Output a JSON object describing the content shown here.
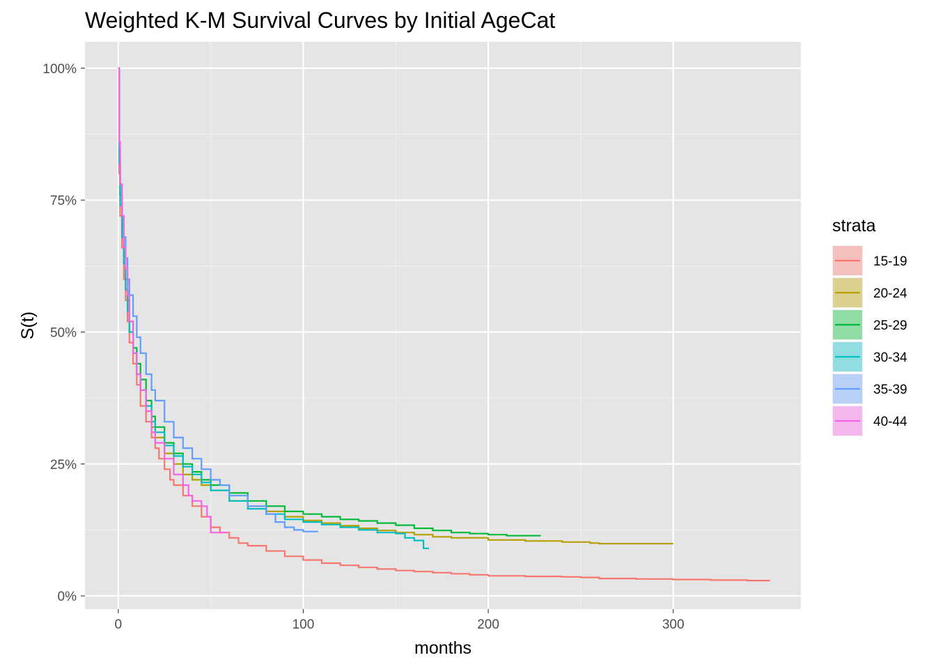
{
  "chart_data": {
    "type": "line",
    "step": true,
    "title": "Weighted K-M Survival Curves by Initial AgeCat",
    "xlabel": "months",
    "ylabel": "S(t)",
    "xlim": [
      -18,
      369
    ],
    "ylim": [
      -0.025,
      1.05
    ],
    "x_ticks": [
      0,
      100,
      200,
      300
    ],
    "x_tick_labels": [
      "0",
      "100",
      "200",
      "300"
    ],
    "y_ticks": [
      0,
      0.25,
      0.5,
      0.75,
      1.0
    ],
    "y_tick_labels": [
      "0%",
      "25%",
      "50%",
      "75%",
      "100%"
    ],
    "grid": true,
    "background": "#e5e5e5",
    "legend": {
      "title": "strata",
      "position": "right"
    },
    "series": [
      {
        "name": "15-19",
        "color": "#F8766D",
        "points": [
          [
            0,
            1.0
          ],
          [
            0.5,
            0.8
          ],
          [
            1,
            0.72
          ],
          [
            2,
            0.66
          ],
          [
            3,
            0.6
          ],
          [
            4,
            0.56
          ],
          [
            5,
            0.52
          ],
          [
            6,
            0.48
          ],
          [
            8,
            0.44
          ],
          [
            10,
            0.4
          ],
          [
            12,
            0.36
          ],
          [
            15,
            0.33
          ],
          [
            18,
            0.3
          ],
          [
            20,
            0.28
          ],
          [
            22,
            0.26
          ],
          [
            25,
            0.24
          ],
          [
            28,
            0.22
          ],
          [
            30,
            0.21
          ],
          [
            35,
            0.19
          ],
          [
            40,
            0.17
          ],
          [
            45,
            0.15
          ],
          [
            50,
            0.13
          ],
          [
            55,
            0.12
          ],
          [
            60,
            0.11
          ],
          [
            65,
            0.1
          ],
          [
            70,
            0.095
          ],
          [
            80,
            0.085
          ],
          [
            90,
            0.075
          ],
          [
            100,
            0.068
          ],
          [
            110,
            0.062
          ],
          [
            120,
            0.058
          ],
          [
            130,
            0.054
          ],
          [
            140,
            0.051
          ],
          [
            150,
            0.048
          ],
          [
            160,
            0.046
          ],
          [
            170,
            0.044
          ],
          [
            180,
            0.042
          ],
          [
            190,
            0.04
          ],
          [
            200,
            0.038
          ],
          [
            220,
            0.037
          ],
          [
            240,
            0.036
          ],
          [
            250,
            0.035
          ],
          [
            260,
            0.033
          ],
          [
            280,
            0.032
          ],
          [
            300,
            0.031
          ],
          [
            320,
            0.03
          ],
          [
            340,
            0.029
          ],
          [
            352,
            0.028
          ]
        ]
      },
      {
        "name": "20-24",
        "color": "#B79F00",
        "points": [
          [
            0,
            1.0
          ],
          [
            0.5,
            0.82
          ],
          [
            1,
            0.75
          ],
          [
            2,
            0.68
          ],
          [
            3,
            0.63
          ],
          [
            4,
            0.58
          ],
          [
            5,
            0.54
          ],
          [
            6,
            0.5
          ],
          [
            8,
            0.46
          ],
          [
            10,
            0.42
          ],
          [
            12,
            0.39
          ],
          [
            15,
            0.35
          ],
          [
            18,
            0.32
          ],
          [
            20,
            0.3
          ],
          [
            25,
            0.27
          ],
          [
            30,
            0.25
          ],
          [
            35,
            0.23
          ],
          [
            40,
            0.22
          ],
          [
            45,
            0.21
          ],
          [
            50,
            0.2
          ],
          [
            60,
            0.18
          ],
          [
            70,
            0.17
          ],
          [
            80,
            0.16
          ],
          [
            90,
            0.15
          ],
          [
            100,
            0.143
          ],
          [
            110,
            0.138
          ],
          [
            120,
            0.133
          ],
          [
            130,
            0.128
          ],
          [
            140,
            0.124
          ],
          [
            150,
            0.12
          ],
          [
            160,
            0.116
          ],
          [
            170,
            0.112
          ],
          [
            180,
            0.11
          ],
          [
            200,
            0.106
          ],
          [
            220,
            0.104
          ],
          [
            240,
            0.102
          ],
          [
            255,
            0.1
          ],
          [
            260,
            0.099
          ],
          [
            280,
            0.099
          ],
          [
            300,
            0.099
          ]
        ]
      },
      {
        "name": "25-29",
        "color": "#00BA38",
        "points": [
          [
            0,
            1.0
          ],
          [
            0.5,
            0.83
          ],
          [
            1,
            0.76
          ],
          [
            2,
            0.7
          ],
          [
            3,
            0.65
          ],
          [
            4,
            0.6
          ],
          [
            5,
            0.56
          ],
          [
            6,
            0.52
          ],
          [
            8,
            0.47
          ],
          [
            10,
            0.44
          ],
          [
            12,
            0.41
          ],
          [
            15,
            0.37
          ],
          [
            18,
            0.34
          ],
          [
            20,
            0.32
          ],
          [
            25,
            0.29
          ],
          [
            30,
            0.27
          ],
          [
            35,
            0.25
          ],
          [
            40,
            0.235
          ],
          [
            45,
            0.22
          ],
          [
            50,
            0.21
          ],
          [
            60,
            0.195
          ],
          [
            70,
            0.18
          ],
          [
            80,
            0.17
          ],
          [
            90,
            0.16
          ],
          [
            100,
            0.155
          ],
          [
            110,
            0.15
          ],
          [
            120,
            0.145
          ],
          [
            130,
            0.142
          ],
          [
            140,
            0.138
          ],
          [
            150,
            0.134
          ],
          [
            160,
            0.128
          ],
          [
            170,
            0.124
          ],
          [
            180,
            0.12
          ],
          [
            190,
            0.118
          ],
          [
            200,
            0.116
          ],
          [
            210,
            0.114
          ],
          [
            228,
            0.113
          ]
        ]
      },
      {
        "name": "30-34",
        "color": "#00BFC4",
        "points": [
          [
            0,
            1.0
          ],
          [
            0.5,
            0.82
          ],
          [
            1,
            0.74
          ],
          [
            2,
            0.68
          ],
          [
            3,
            0.63
          ],
          [
            4,
            0.58
          ],
          [
            5,
            0.54
          ],
          [
            6,
            0.5
          ],
          [
            8,
            0.46
          ],
          [
            10,
            0.42
          ],
          [
            12,
            0.39
          ],
          [
            15,
            0.36
          ],
          [
            18,
            0.33
          ],
          [
            20,
            0.31
          ],
          [
            25,
            0.285
          ],
          [
            30,
            0.265
          ],
          [
            35,
            0.245
          ],
          [
            40,
            0.23
          ],
          [
            45,
            0.215
          ],
          [
            50,
            0.2
          ],
          [
            60,
            0.18
          ],
          [
            70,
            0.165
          ],
          [
            80,
            0.155
          ],
          [
            90,
            0.145
          ],
          [
            100,
            0.14
          ],
          [
            110,
            0.135
          ],
          [
            120,
            0.13
          ],
          [
            130,
            0.125
          ],
          [
            140,
            0.12
          ],
          [
            150,
            0.118
          ],
          [
            155,
            0.11
          ],
          [
            160,
            0.105
          ],
          [
            165,
            0.09
          ],
          [
            168,
            0.09
          ]
        ]
      },
      {
        "name": "35-39",
        "color": "#619CFF",
        "points": [
          [
            0,
            1.0
          ],
          [
            0.5,
            0.85
          ],
          [
            1,
            0.78
          ],
          [
            2,
            0.72
          ],
          [
            3,
            0.68
          ],
          [
            4,
            0.64
          ],
          [
            5,
            0.6
          ],
          [
            6,
            0.57
          ],
          [
            8,
            0.53
          ],
          [
            10,
            0.49
          ],
          [
            12,
            0.46
          ],
          [
            15,
            0.42
          ],
          [
            18,
            0.39
          ],
          [
            20,
            0.37
          ],
          [
            25,
            0.33
          ],
          [
            30,
            0.3
          ],
          [
            35,
            0.28
          ],
          [
            40,
            0.26
          ],
          [
            45,
            0.24
          ],
          [
            50,
            0.22
          ],
          [
            55,
            0.21
          ],
          [
            60,
            0.19
          ],
          [
            70,
            0.17
          ],
          [
            80,
            0.155
          ],
          [
            85,
            0.14
          ],
          [
            90,
            0.13
          ],
          [
            95,
            0.125
          ],
          [
            100,
            0.122
          ],
          [
            108,
            0.122
          ]
        ]
      },
      {
        "name": "40-44",
        "color": "#F564E3",
        "points": [
          [
            0,
            1.0
          ],
          [
            0.5,
            0.86
          ],
          [
            1,
            0.78
          ],
          [
            2,
            0.72
          ],
          [
            3,
            0.66
          ],
          [
            4,
            0.62
          ],
          [
            5,
            0.57
          ],
          [
            6,
            0.52
          ],
          [
            8,
            0.46
          ],
          [
            10,
            0.42
          ],
          [
            12,
            0.39
          ],
          [
            15,
            0.35
          ],
          [
            18,
            0.31
          ],
          [
            20,
            0.29
          ],
          [
            25,
            0.26
          ],
          [
            30,
            0.23
          ],
          [
            35,
            0.21
          ],
          [
            38,
            0.19
          ],
          [
            40,
            0.18
          ],
          [
            45,
            0.17
          ],
          [
            48,
            0.15
          ],
          [
            50,
            0.12
          ],
          [
            55,
            0.12
          ],
          [
            59,
            0.12
          ]
        ]
      }
    ]
  }
}
